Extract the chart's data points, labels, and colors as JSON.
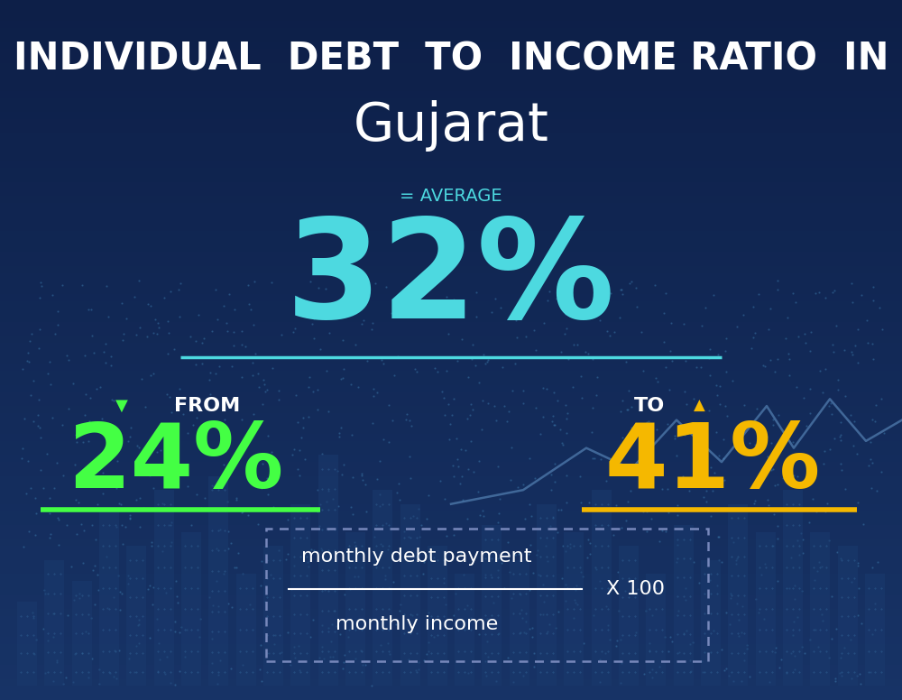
{
  "title_line1": "INDIVIDUAL  DEBT  TO  INCOME RATIO  IN",
  "title_line2": "Gujarat",
  "avg_label": "= AVERAGE",
  "avg_value": "32%",
  "from_label": "FROM",
  "from_value": "24%",
  "to_label": "TO",
  "to_value": "41%",
  "formula_numerator": "monthly debt payment",
  "formula_denominator": "monthly income",
  "formula_multiplier": "X 100",
  "bg_dark": "#081535",
  "bg_mid": "#0e2050",
  "cyan_color": "#4dd9e0",
  "green_color": "#44ff44",
  "gold_color": "#f5b800",
  "white_color": "#ffffff",
  "bar_color": "#1a3a6e",
  "dot_color": "#4488bb",
  "line_color": "#6699cc",
  "title1_fontsize": 30,
  "title2_fontsize": 42,
  "avg_label_fontsize": 14,
  "avg_value_fontsize": 110,
  "from_to_label_fontsize": 16,
  "from_to_value_fontsize": 72,
  "formula_fontsize": 16
}
